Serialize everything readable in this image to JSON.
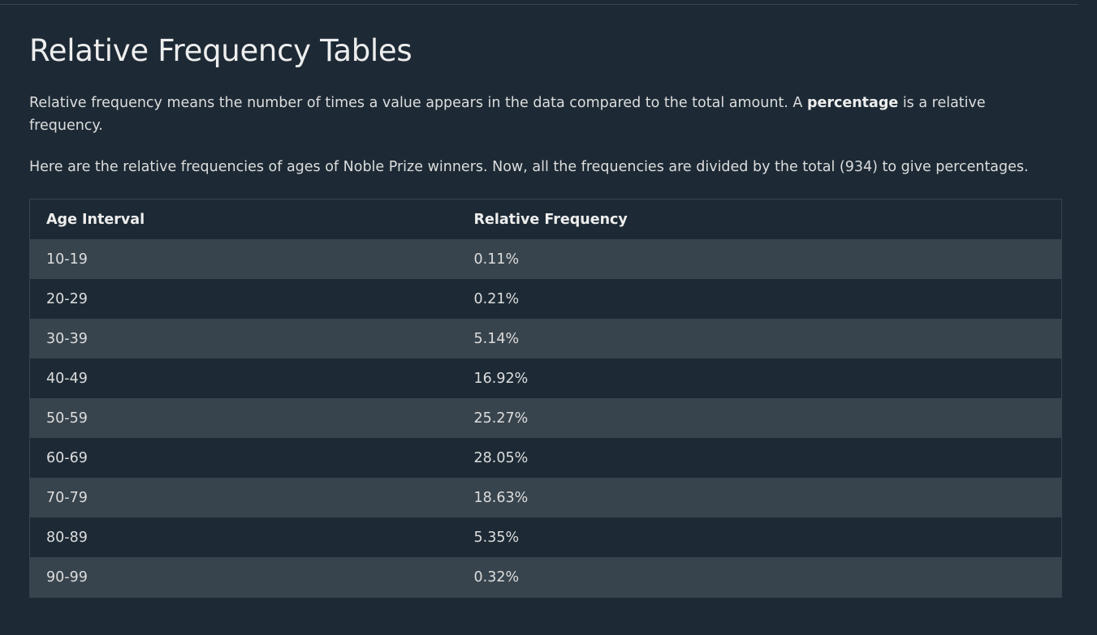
{
  "heading": "Relative Frequency Tables",
  "intro": {
    "before": "Relative frequency means the number of times a value appears in the data compared to the total amount. A ",
    "bold": "percentage",
    "after": " is a relative frequency."
  },
  "description": "Here are the relative frequencies of ages of Noble Prize winners. Now, all the frequencies are divided by the total (934) to give percentages.",
  "table": {
    "headers": [
      "Age Interval",
      "Relative Frequency"
    ],
    "rows": [
      [
        "10-19",
        "0.11%"
      ],
      [
        "20-29",
        "0.21%"
      ],
      [
        "30-39",
        "5.14%"
      ],
      [
        "40-49",
        "16.92%"
      ],
      [
        "50-59",
        "25.27%"
      ],
      [
        "60-69",
        "28.05%"
      ],
      [
        "70-79",
        "18.63%"
      ],
      [
        "80-89",
        "5.35%"
      ],
      [
        "90-99",
        "0.32%"
      ]
    ]
  },
  "colors": {
    "background": "#1d2a35",
    "row_alt": "#38444d",
    "text": "#dddddd"
  }
}
